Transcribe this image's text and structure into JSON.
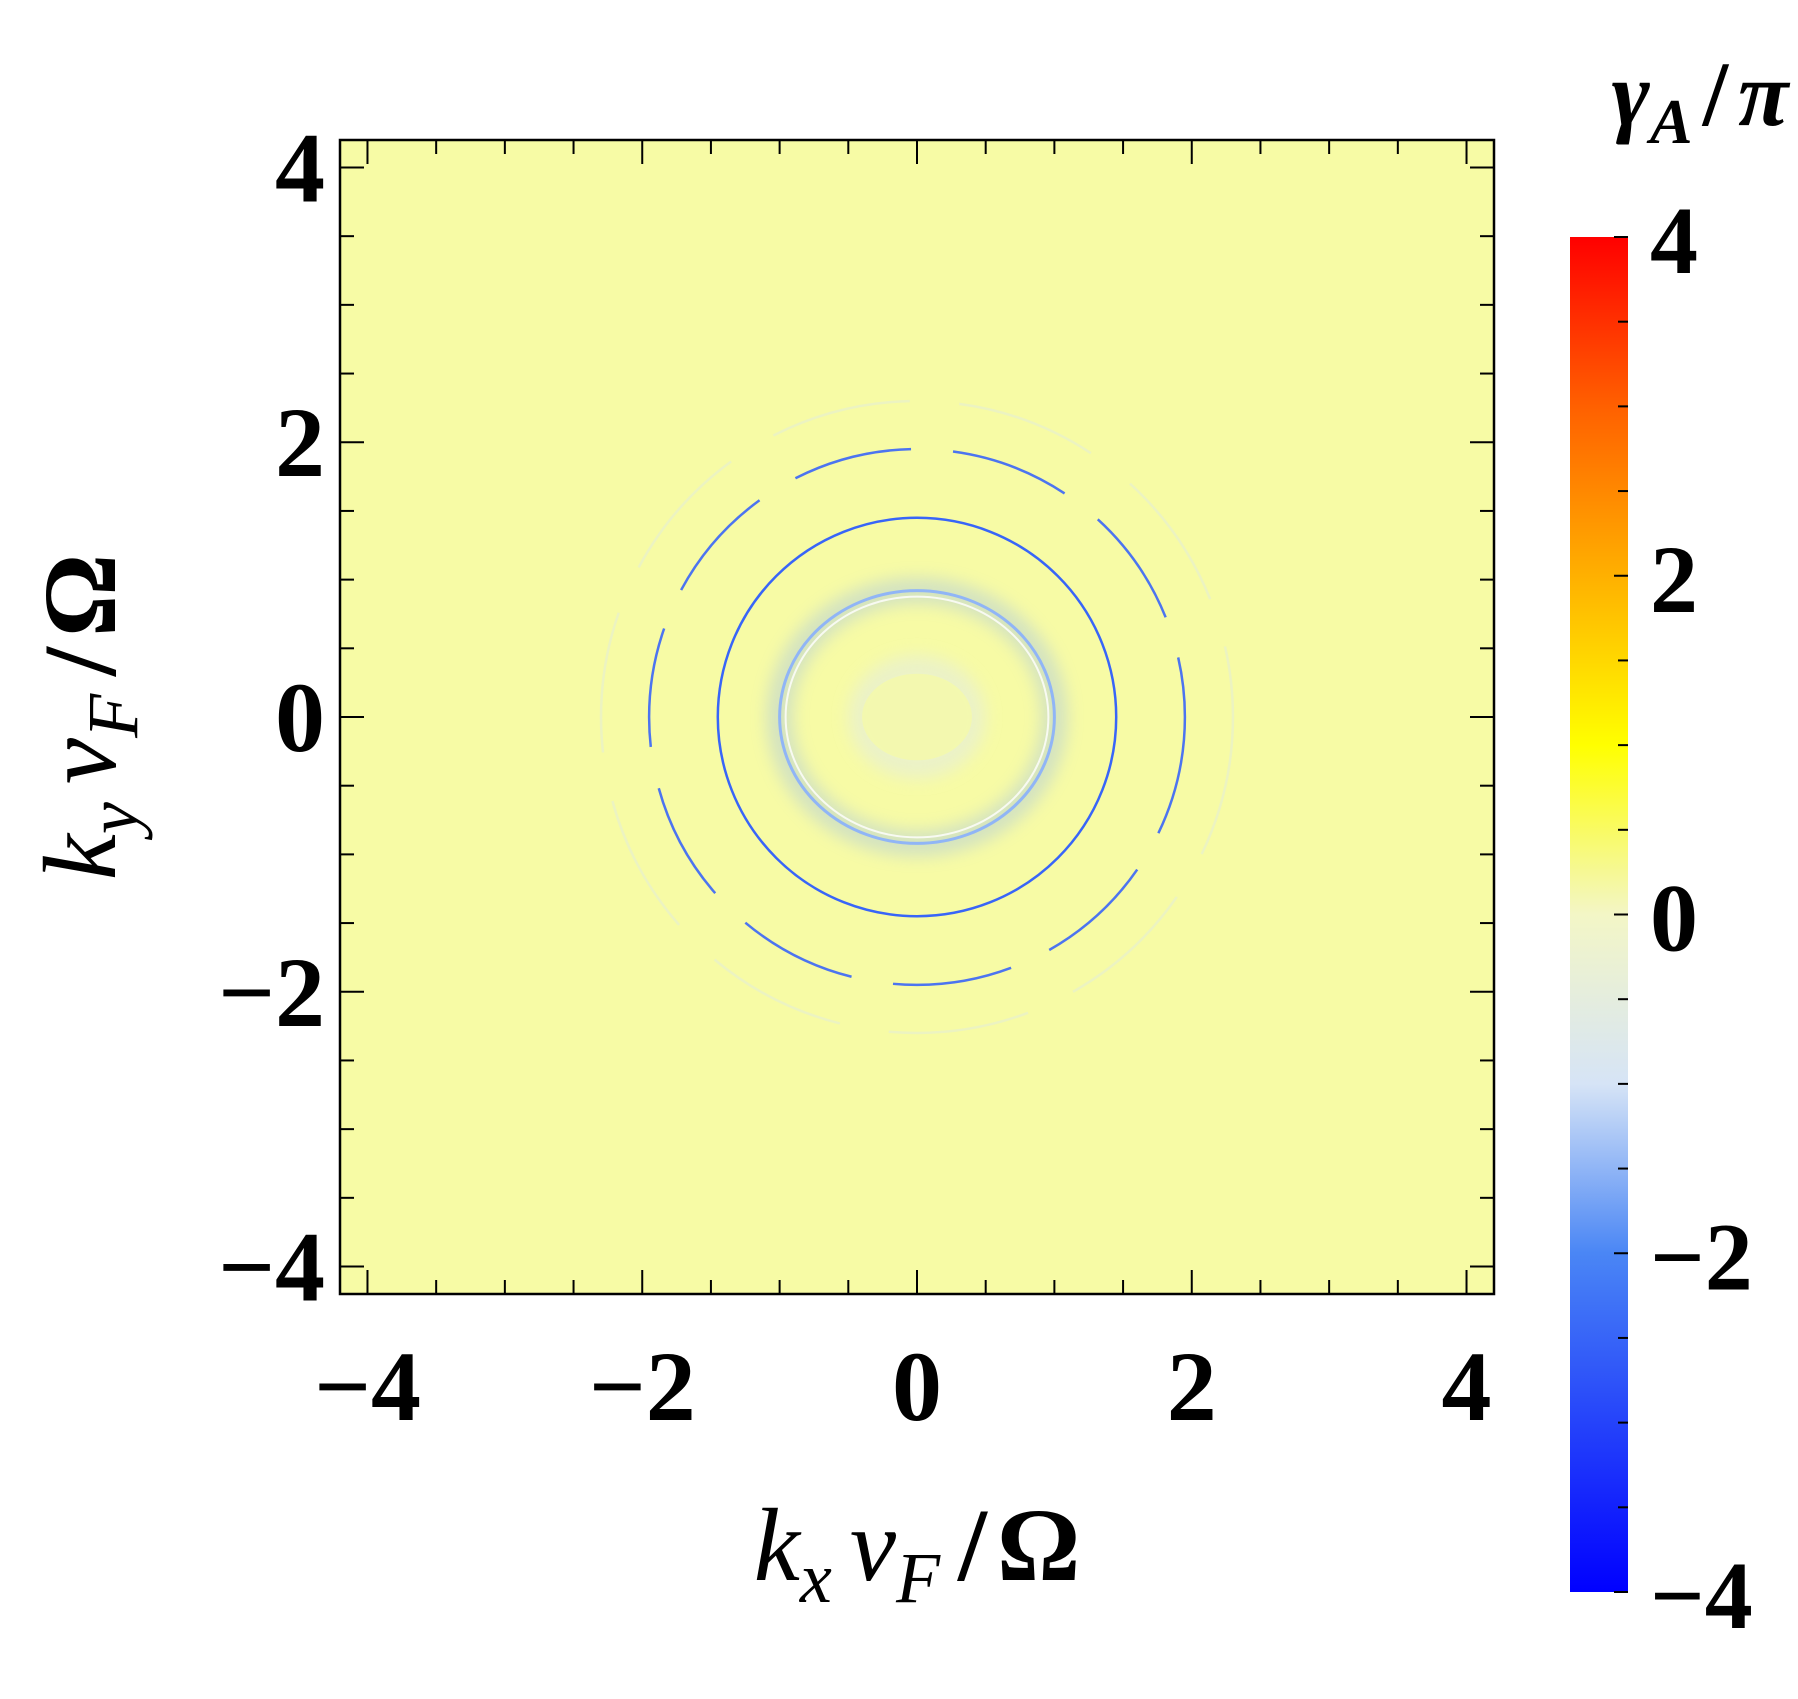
{
  "chart_data": {
    "type": "heatmap",
    "xlabel": {
      "k": "k",
      "k_sub": "x",
      "v": "v",
      "v_sub": "F",
      "slash": "/",
      "omega": "Ω"
    },
    "ylabel": {
      "k": "k",
      "k_sub": "y",
      "v": "v",
      "v_sub": "F",
      "slash": "/",
      "omega": "Ω"
    },
    "colorbar_label": {
      "gamma": "γ",
      "sub": "A",
      "slash": "/",
      "pi": "π"
    },
    "xlim": [
      -4.2,
      4.2
    ],
    "ylim": [
      -4.2,
      4.2
    ],
    "x_ticks": [
      -4,
      -2,
      0,
      2,
      4
    ],
    "y_ticks": [
      -4,
      -2,
      0,
      2,
      4
    ],
    "x_tick_labels": [
      "−4",
      "−2",
      "0",
      "2",
      "4"
    ],
    "y_tick_labels": [
      "−4",
      "−2",
      "0",
      "2",
      "4"
    ],
    "colorbar_range": [
      -4,
      4
    ],
    "colorbar_ticks": [
      -4,
      -2,
      0,
      2,
      4
    ],
    "colorbar_tick_labels": [
      "−4",
      "−2",
      "0",
      "2",
      "4"
    ],
    "colorscale": [
      {
        "value": -4,
        "color": "#0000ff"
      },
      {
        "value": -2,
        "color": "#4a86f5"
      },
      {
        "value": -1,
        "color": "#d6e4f6"
      },
      {
        "value": 0,
        "color": "#f3f6c6"
      },
      {
        "value": 1,
        "color": "#ffff00"
      },
      {
        "value": 2,
        "color": "#ffb000"
      },
      {
        "value": 3,
        "color": "#ff6000"
      },
      {
        "value": 4,
        "color": "#ff0000"
      }
    ],
    "background_value": 0.2,
    "background_color": "#f7fba5",
    "features": [
      {
        "name": "central-lobe",
        "shape": "filled-ellipse",
        "cx": 0,
        "cy": 0,
        "rx": 0.5,
        "ry": 0.45,
        "value": -0.6
      },
      {
        "name": "inner-ring",
        "shape": "ellipse",
        "cx": 0,
        "cy": 0,
        "rx": 1.0,
        "ry": 0.92,
        "value": -1.5
      },
      {
        "name": "middle-ring",
        "shape": "circle",
        "cx": 0,
        "cy": 0,
        "r": 1.45,
        "value": -2.5
      },
      {
        "name": "outer-ring",
        "shape": "broken-circle",
        "cx": 0,
        "cy": 0,
        "r": 1.95,
        "value": -2.5
      },
      {
        "name": "faint-ring",
        "shape": "broken-circle",
        "cx": 0,
        "cy": 0,
        "r": 2.3,
        "value": -1.0
      }
    ]
  }
}
